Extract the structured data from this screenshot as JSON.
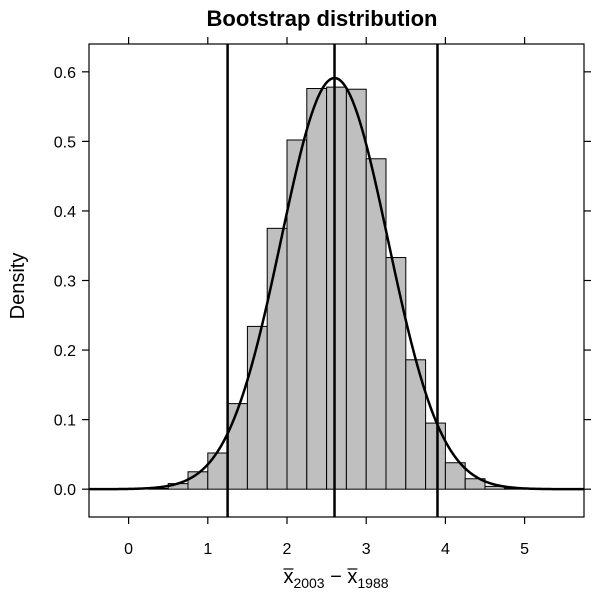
{
  "chart_data": {
    "type": "bar",
    "title": "Bootstrap distribution",
    "xlabel": {
      "a": "x",
      "a_sub": "2003",
      "sep": " − ",
      "b": "x",
      "b_sub": "1988"
    },
    "ylabel": "Density",
    "xlim": [
      -0.5,
      5.75
    ],
    "ylim": [
      -0.04,
      0.64
    ],
    "x_ticks": [
      0,
      1,
      2,
      3,
      4,
      5
    ],
    "y_ticks": [
      0.0,
      0.1,
      0.2,
      0.3,
      0.4,
      0.5,
      0.6
    ],
    "y_tick_labels": [
      "0.0",
      "0.1",
      "0.2",
      "0.3",
      "0.4",
      "0.5",
      "0.6"
    ],
    "bin_width": 0.25,
    "histogram": {
      "bin_starts": [
        0.25,
        0.5,
        0.75,
        1.0,
        1.25,
        1.5,
        1.75,
        2.0,
        2.25,
        2.5,
        2.75,
        3.0,
        3.25,
        3.5,
        3.75,
        4.0,
        4.25,
        4.5,
        4.75
      ],
      "densities": [
        0.001,
        0.008,
        0.025,
        0.052,
        0.123,
        0.234,
        0.375,
        0.502,
        0.576,
        0.578,
        0.575,
        0.475,
        0.333,
        0.186,
        0.095,
        0.038,
        0.015,
        0.004,
        0.001
      ]
    },
    "density_curve": {
      "mean": 2.6,
      "sd": 0.675
    },
    "vertical_lines": [
      1.25,
      2.6,
      3.9
    ],
    "colors": {
      "bar_fill": "#bfbfbf",
      "bar_stroke": "#000000",
      "curve": "#000000"
    }
  }
}
